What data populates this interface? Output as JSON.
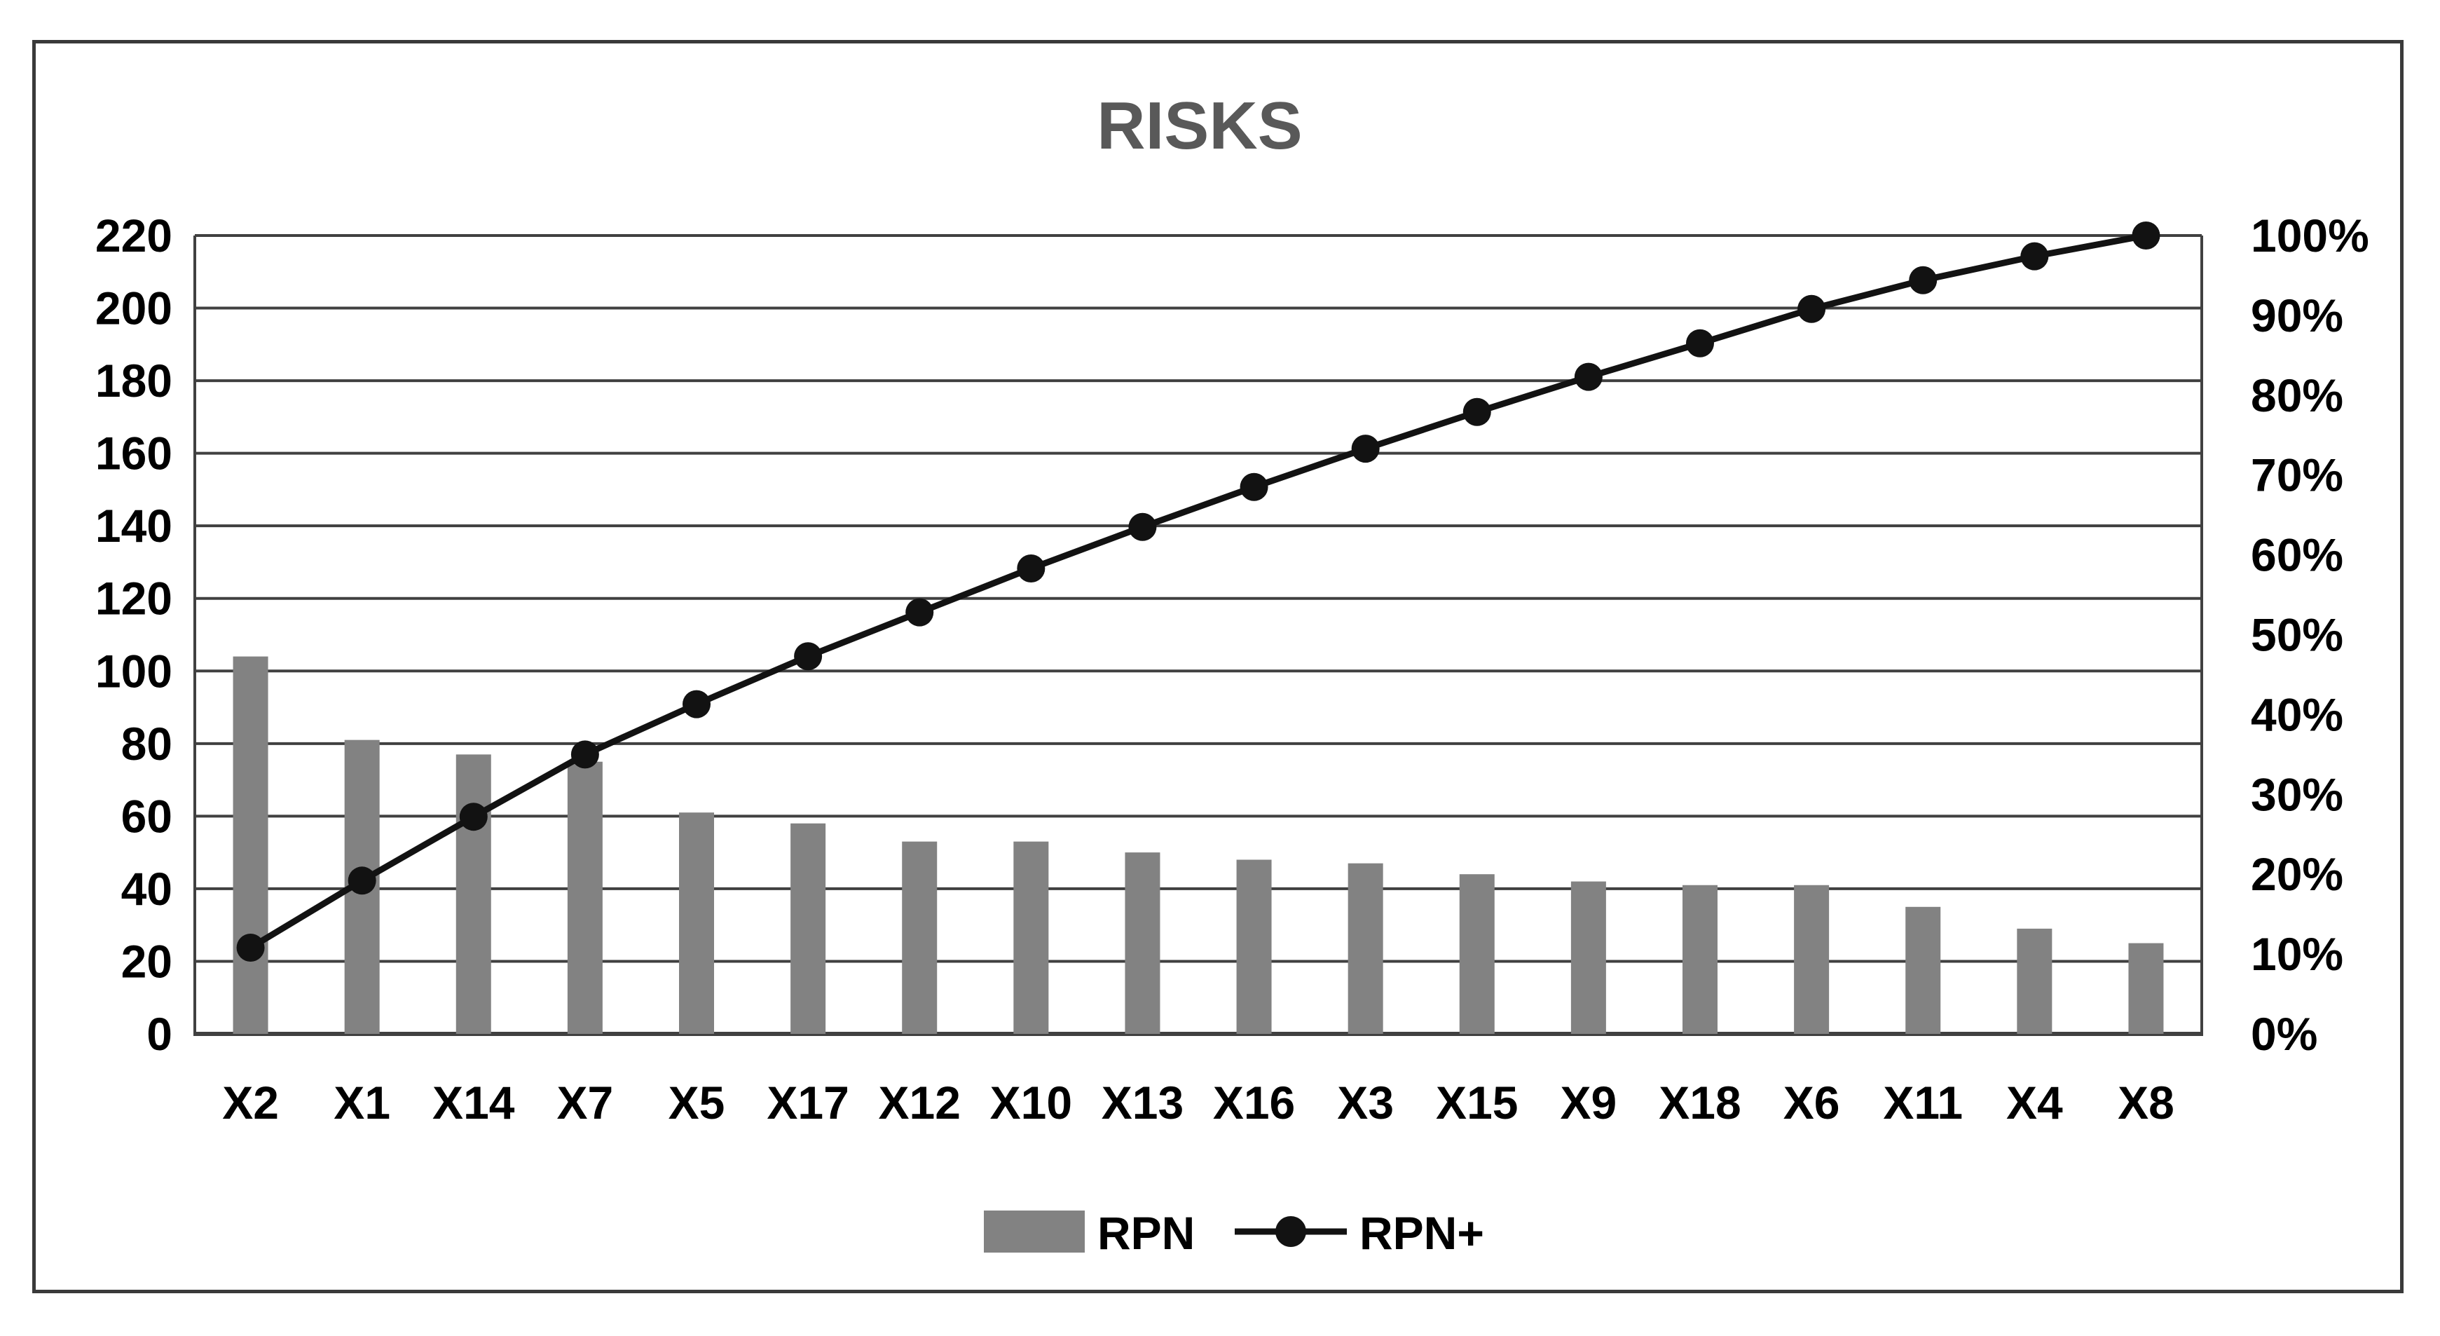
{
  "window": {
    "background": "#ffffff",
    "frame_border_color": "#3a3a3a"
  },
  "chart_data": {
    "type": "pareto (bar + cumulative line combo)",
    "title": "RISKS",
    "categories": [
      "X2",
      "X1",
      "X14",
      "X7",
      "X5",
      "X17",
      "X12",
      "X10",
      "X13",
      "X16",
      "X3",
      "X15",
      "X9",
      "X18",
      "X6",
      "X11",
      "X4",
      "X8"
    ],
    "series": [
      {
        "name": "RPN",
        "type": "bar",
        "axis": "left",
        "color": "#828282",
        "values": [
          104,
          81,
          77,
          75,
          61,
          58,
          53,
          53,
          50,
          48,
          47,
          44,
          42,
          41,
          41,
          35,
          29,
          25
        ]
      },
      {
        "name": "RPN+",
        "type": "line",
        "axis": "right",
        "color": "#121212",
        "marker": "filled-circle",
        "values_pct": [
          10.8,
          19.2,
          27.2,
          35.0,
          41.3,
          47.3,
          52.8,
          58.3,
          63.5,
          68.5,
          73.3,
          77.9,
          82.3,
          86.5,
          90.8,
          94.4,
          97.4,
          100.0
        ]
      }
    ],
    "left_axis": {
      "min": 0,
      "max": 220,
      "step": 20,
      "tick_labels": [
        "0",
        "20",
        "40",
        "60",
        "80",
        "100",
        "120",
        "140",
        "160",
        "180",
        "200",
        "220"
      ]
    },
    "right_axis": {
      "min_pct": 0,
      "max_pct": 100,
      "step_pct": 10,
      "tick_labels": [
        "0%",
        "10%",
        "20%",
        "30%",
        "40%",
        "50%",
        "60%",
        "70%",
        "80%",
        "90%",
        "100%"
      ]
    },
    "grid": true,
    "gridline_color": "#404040",
    "axis_line_color": "#404040",
    "title_color": "#595959",
    "legend_position": "bottom"
  }
}
